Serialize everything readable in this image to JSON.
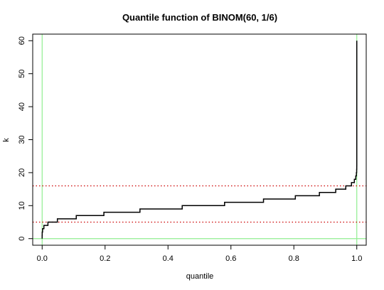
{
  "chart_data": {
    "type": "line",
    "title": "Quantile function of BINOM(60, 1/6)",
    "xlabel": "quantile",
    "ylabel": "k",
    "xlim": [
      -0.03,
      1.03
    ],
    "ylim": [
      -2,
      62
    ],
    "x_ticks": [
      0.0,
      0.2,
      0.4,
      0.6,
      0.8,
      1.0
    ],
    "x_tick_labels": [
      "0.0",
      "0.2",
      "0.4",
      "0.6",
      "0.8",
      "1.0"
    ],
    "y_ticks": [
      0,
      10,
      20,
      30,
      40,
      50,
      60
    ],
    "y_tick_labels": [
      "0",
      "10",
      "20",
      "30",
      "40",
      "50",
      "60"
    ],
    "grid": false,
    "series": [
      {
        "line_style": "step",
        "color": "#000000",
        "x": [
          0.0,
          0.0,
          0.0002,
          0.0013,
          0.0055,
          0.0184,
          0.0484,
          0.1084,
          0.1962,
          0.3109,
          0.4451,
          0.5798,
          0.7035,
          0.8047,
          0.8812,
          0.9331,
          0.9651,
          0.9831,
          0.9923,
          0.9968,
          0.9988,
          0.9996,
          0.9999,
          1.0
        ],
        "y": [
          0,
          1,
          2,
          3,
          4,
          5,
          6,
          7,
          8,
          9,
          10,
          11,
          12,
          13,
          14,
          15,
          16,
          17,
          18,
          19,
          20,
          21,
          22,
          60
        ]
      }
    ],
    "reference_lines": [
      {
        "orientation": "vertical",
        "value": 0,
        "color": "#90ee90",
        "style": "solid"
      },
      {
        "orientation": "vertical",
        "value": 1,
        "color": "#90ee90",
        "style": "solid"
      },
      {
        "orientation": "horizontal",
        "value": 0,
        "color": "#90ee90",
        "style": "solid"
      },
      {
        "orientation": "horizontal",
        "value": 5,
        "color": "#cc0000",
        "style": "dotted"
      },
      {
        "orientation": "horizontal",
        "value": 16,
        "color": "#cc0000",
        "style": "dotted"
      }
    ]
  }
}
